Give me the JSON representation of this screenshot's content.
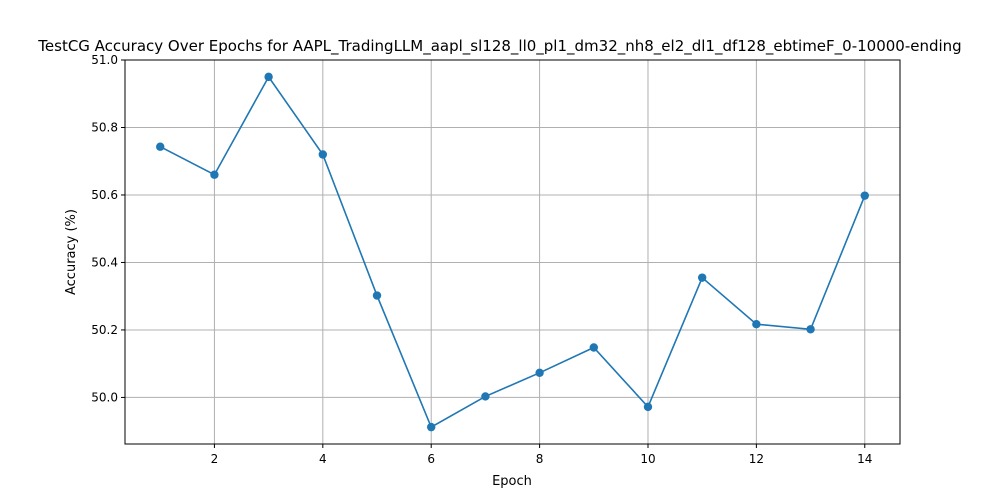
{
  "chart_data": {
    "type": "line",
    "title": "TestCG Accuracy Over Epochs for AAPL_TradingLLM_aapl_sl128_ll0_pl1_dm32_nh8_el2_dl1_df128_ebtimeF_0-10000-ending",
    "xlabel": "Epoch",
    "ylabel": "Accuracy (%)",
    "x": [
      1,
      2,
      3,
      4,
      5,
      6,
      7,
      8,
      9,
      10,
      11,
      12,
      13,
      14
    ],
    "series": [
      {
        "values": [
          50.743,
          50.66,
          50.95,
          50.72,
          50.302,
          49.912,
          50.003,
          50.073,
          50.148,
          49.972,
          50.355,
          50.217,
          50.202,
          50.598
        ],
        "color": "#1f77b4"
      }
    ],
    "xlim": [
      0.35,
      14.65
    ],
    "ylim": [
      49.862,
      51.0
    ],
    "xticks": [
      2,
      4,
      6,
      8,
      10,
      12,
      14
    ],
    "yticks": [
      "50.0",
      "50.2",
      "50.4",
      "50.6",
      "50.8",
      "51.0"
    ],
    "grid": true,
    "marker": "circle"
  }
}
